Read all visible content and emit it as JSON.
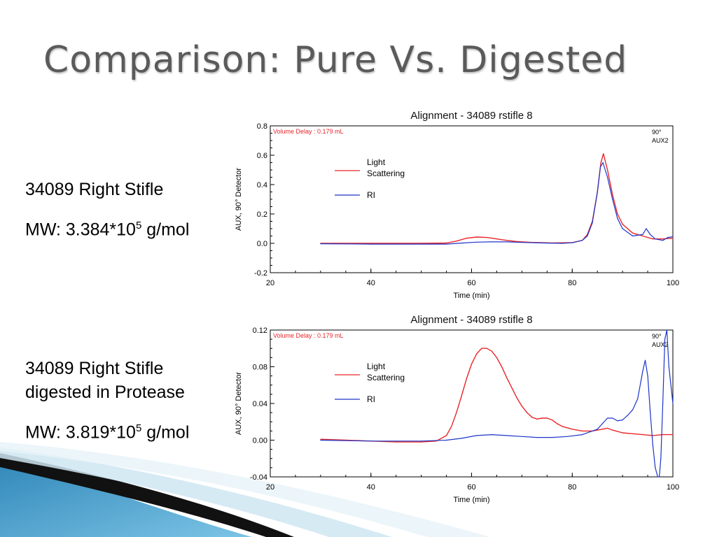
{
  "slide": {
    "title": "Comparison: Pure Vs. Digested",
    "pure": {
      "name": "34089 Right Stifle",
      "mw_prefix": "MW: 3.384*10",
      "mw_exp": "5",
      "mw_unit": " g/mol"
    },
    "digested": {
      "name_line1": "34089 Right Stifle",
      "name_line2": "digested in Protease",
      "mw_prefix": "MW: 3.819*10",
      "mw_exp": "5",
      "mw_unit": " g/mol"
    }
  },
  "colors": {
    "ls": "#e8262b",
    "ri": "#1d35c8",
    "title_text": "#5a5a5a",
    "volume_delay": "#e8262b",
    "deco_blue": "#4aa3cf"
  },
  "chart_data": [
    {
      "type": "line",
      "title": "Alignment - 34089 rstifle 8",
      "xlabel": "Time (min)",
      "ylabel": "AUX, 90° Detector",
      "xlim": [
        20,
        100
      ],
      "ylim": [
        -0.2,
        0.8
      ],
      "xticks": [
        20,
        40,
        60,
        80,
        100
      ],
      "xtick_labels": [
        "20",
        "40",
        "60",
        "80",
        "100"
      ],
      "yticks": [
        -0.2,
        0.0,
        0.2,
        0.4,
        0.6,
        0.8
      ],
      "ytick_labels": [
        "-0.2",
        "0.0",
        "0.2",
        "0.4",
        "0.6",
        "0.8"
      ],
      "annotation": "Volume Delay :  0.179 mL",
      "corner_labels": [
        "90°",
        "AUX2"
      ],
      "legend": [
        "Light",
        "Scattering",
        "RI"
      ],
      "series": [
        {
          "name": "Light Scattering",
          "x": [
            30,
            40,
            50,
            55,
            57,
            59,
            61,
            63,
            65,
            67,
            69,
            72,
            76,
            80,
            82,
            83,
            84,
            85,
            85.7,
            86.2,
            87,
            88,
            89,
            90,
            92,
            94,
            96,
            98,
            100
          ],
          "y": [
            0.0,
            0.0,
            0.0,
            0.002,
            0.015,
            0.035,
            0.043,
            0.04,
            0.03,
            0.02,
            0.012,
            0.006,
            0.003,
            0.005,
            0.02,
            0.06,
            0.15,
            0.35,
            0.55,
            0.61,
            0.5,
            0.33,
            0.2,
            0.13,
            0.07,
            0.05,
            0.03,
            0.03,
            0.035
          ]
        },
        {
          "name": "RI",
          "x": [
            30,
            40,
            50,
            55,
            58,
            61,
            64,
            67,
            70,
            75,
            78,
            80,
            82,
            83,
            84,
            85,
            85.6,
            86.1,
            87,
            88,
            89,
            90,
            92,
            94,
            94.7,
            95.5,
            96.5,
            98,
            99,
            100
          ],
          "y": [
            -0.003,
            -0.005,
            -0.005,
            -0.005,
            0.002,
            0.008,
            0.01,
            0.01,
            0.006,
            0.002,
            0.0,
            0.004,
            0.02,
            0.05,
            0.14,
            0.35,
            0.52,
            0.55,
            0.45,
            0.3,
            0.17,
            0.1,
            0.05,
            0.06,
            0.1,
            0.06,
            0.03,
            0.02,
            0.04,
            0.045
          ]
        }
      ]
    },
    {
      "type": "line",
      "title": "Alignment - 34089 rstifle 8",
      "xlabel": "Time (min)",
      "ylabel": "AUX, 90° Detector",
      "xlim": [
        20,
        100
      ],
      "ylim": [
        -0.04,
        0.12
      ],
      "xticks": [
        20,
        40,
        60,
        80,
        100
      ],
      "xtick_labels": [
        "20",
        "40",
        "60",
        "80",
        "100"
      ],
      "yticks": [
        -0.04,
        0.0,
        0.04,
        0.08,
        0.12
      ],
      "ytick_labels": [
        "-0.04",
        "0.00",
        "0.04",
        "0.08",
        "0.12"
      ],
      "annotation": "Volume Delay :  0.179 mL",
      "corner_labels": [
        "90°",
        "AUX2"
      ],
      "legend": [
        "Light",
        "Scattering",
        "RI"
      ],
      "series": [
        {
          "name": "Light Scattering",
          "x": [
            30,
            35,
            40,
            45,
            50,
            53,
            55,
            56,
            57,
            58,
            59,
            60,
            61,
            62,
            63,
            64,
            65,
            66,
            67,
            68,
            69,
            70,
            71,
            72,
            73,
            74,
            75,
            76,
            77,
            78,
            80,
            82,
            84,
            86,
            87,
            88,
            90,
            92,
            94,
            96,
            98,
            100
          ],
          "y": [
            0.001,
            0.0,
            -0.001,
            -0.002,
            -0.002,
            -0.001,
            0.005,
            0.015,
            0.03,
            0.048,
            0.067,
            0.083,
            0.094,
            0.1,
            0.1,
            0.097,
            0.09,
            0.08,
            0.068,
            0.057,
            0.046,
            0.037,
            0.03,
            0.025,
            0.023,
            0.024,
            0.024,
            0.022,
            0.018,
            0.015,
            0.012,
            0.01,
            0.01,
            0.012,
            0.013,
            0.011,
            0.008,
            0.007,
            0.006,
            0.005,
            0.006,
            0.006
          ]
        },
        {
          "name": "RI",
          "x": [
            30,
            40,
            50,
            55,
            58,
            61,
            64,
            67,
            70,
            73,
            76,
            79,
            82,
            85,
            86,
            87,
            88,
            89,
            90,
            91,
            92,
            93,
            94,
            94.5,
            95,
            95.5,
            96,
            96.5,
            97,
            97.3,
            97.6,
            98,
            98.4,
            98.8,
            99.2,
            100
          ],
          "y": [
            0.0,
            -0.001,
            -0.001,
            0.0,
            0.002,
            0.005,
            0.006,
            0.005,
            0.004,
            0.003,
            0.003,
            0.004,
            0.006,
            0.012,
            0.018,
            0.024,
            0.024,
            0.021,
            0.022,
            0.027,
            0.033,
            0.045,
            0.075,
            0.087,
            0.07,
            0.03,
            -0.005,
            -0.03,
            -0.045,
            -0.05,
            -0.02,
            0.04,
            0.11,
            0.12,
            0.08,
            0.04
          ]
        }
      ]
    }
  ]
}
